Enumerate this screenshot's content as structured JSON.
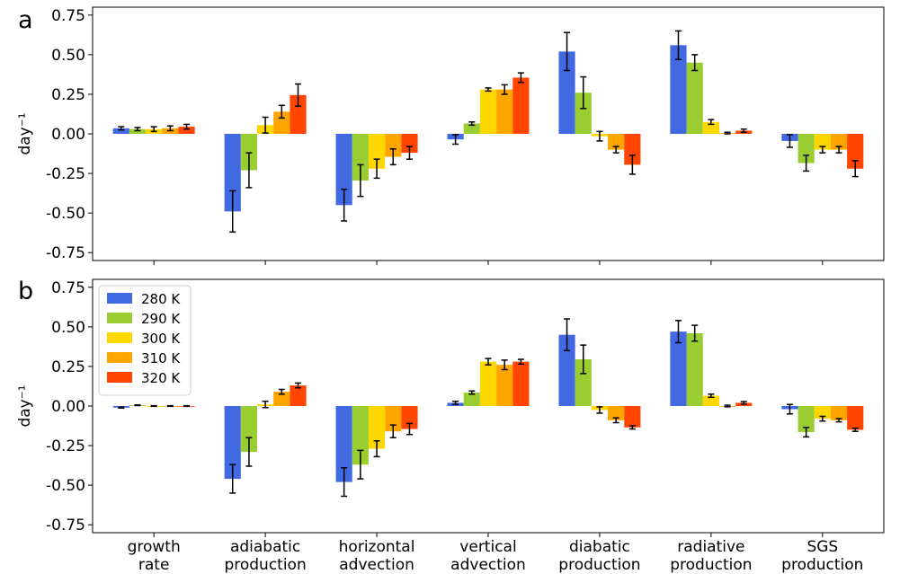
{
  "figure": {
    "panel_labels": [
      "a",
      "b"
    ],
    "colors": [
      "#4169E1",
      "#9ACD32",
      "#FFD700",
      "#FFA500",
      "#FF4500"
    ]
  },
  "chart_data": [
    {
      "type": "bar",
      "panel": "a",
      "categories": [
        "growth\nrate",
        "adiabatic\nproduction",
        "horizontal\nadvection",
        "vertical\nadvection",
        "diabatic\nproduction",
        "radiative\nproduction",
        "SGS\nproduction"
      ],
      "ylabel": "day⁻¹",
      "ylim": [
        -0.8,
        0.8
      ],
      "yticks": [
        "0.75",
        "0.50",
        "0.25",
        "0.00",
        "-0.25",
        "-0.50",
        "-0.75"
      ],
      "ytick_values": [
        0.75,
        0.5,
        0.25,
        0.0,
        -0.25,
        -0.5,
        -0.75
      ],
      "show_xtick_labels": false,
      "show_legend": false,
      "series": [
        {
          "name": "280 K",
          "values": [
            0.035,
            -0.49,
            -0.45,
            -0.035,
            0.52,
            0.56,
            -0.045
          ],
          "errors": [
            0.01,
            0.13,
            0.1,
            0.03,
            0.12,
            0.09,
            0.04
          ]
        },
        {
          "name": "290 K",
          "values": [
            0.03,
            -0.23,
            -0.295,
            0.065,
            0.26,
            0.45,
            -0.185
          ],
          "errors": [
            0.01,
            0.11,
            0.1,
            0.01,
            0.1,
            0.05,
            0.05
          ]
        },
        {
          "name": "300 K",
          "values": [
            0.03,
            0.055,
            -0.22,
            0.28,
            -0.015,
            0.075,
            -0.1
          ],
          "errors": [
            0.015,
            0.05,
            0.06,
            0.01,
            0.03,
            0.015,
            0.02
          ]
        },
        {
          "name": "310 K",
          "values": [
            0.035,
            0.14,
            -0.145,
            0.28,
            -0.1,
            0.005,
            -0.1
          ],
          "errors": [
            0.015,
            0.04,
            0.05,
            0.03,
            0.02,
            0.005,
            0.02
          ]
        },
        {
          "name": "320 K",
          "values": [
            0.045,
            0.245,
            -0.12,
            0.355,
            -0.195,
            0.02,
            -0.22
          ],
          "errors": [
            0.015,
            0.07,
            0.04,
            0.03,
            0.06,
            0.01,
            0.05
          ]
        }
      ]
    },
    {
      "type": "bar",
      "panel": "b",
      "categories": [
        "growth\nrate",
        "adiabatic\nproduction",
        "horizontal\nadvection",
        "vertical\nadvection",
        "diabatic\nproduction",
        "radiative\nproduction",
        "SGS\nproduction"
      ],
      "ylabel": "day⁻¹",
      "ylim": [
        -0.8,
        0.8
      ],
      "yticks": [
        "0.75",
        "0.50",
        "0.25",
        "0.00",
        "-0.25",
        "-0.50",
        "-0.75"
      ],
      "ytick_values": [
        0.75,
        0.5,
        0.25,
        0.0,
        -0.25,
        -0.5,
        -0.75
      ],
      "show_xtick_labels": true,
      "show_legend": true,
      "legend_loc": "upper left",
      "series": [
        {
          "name": "280 K",
          "values": [
            -0.01,
            -0.46,
            -0.48,
            0.02,
            0.45,
            0.47,
            -0.02
          ],
          "errors": [
            0.003,
            0.09,
            0.09,
            0.01,
            0.1,
            0.07,
            0.03
          ]
        },
        {
          "name": "290 K",
          "values": [
            0.005,
            -0.29,
            -0.37,
            0.085,
            0.295,
            0.46,
            -0.165
          ],
          "errors": [
            0.002,
            0.09,
            0.09,
            0.01,
            0.09,
            0.05,
            0.03
          ]
        },
        {
          "name": "300 K",
          "values": [
            0.0,
            0.01,
            -0.27,
            0.28,
            -0.025,
            0.065,
            -0.08
          ],
          "errors": [
            0.002,
            0.02,
            0.05,
            0.02,
            0.02,
            0.01,
            0.015
          ]
        },
        {
          "name": "310 K",
          "values": [
            0.0,
            0.09,
            -0.16,
            0.26,
            -0.09,
            0.0,
            -0.09
          ],
          "errors": [
            0.002,
            0.015,
            0.04,
            0.03,
            0.015,
            0.005,
            0.01
          ]
        },
        {
          "name": "320 K",
          "values": [
            0.0,
            0.13,
            -0.145,
            0.28,
            -0.135,
            0.02,
            -0.15
          ],
          "errors": [
            0.002,
            0.015,
            0.035,
            0.015,
            0.01,
            0.008,
            0.01
          ]
        }
      ]
    }
  ]
}
